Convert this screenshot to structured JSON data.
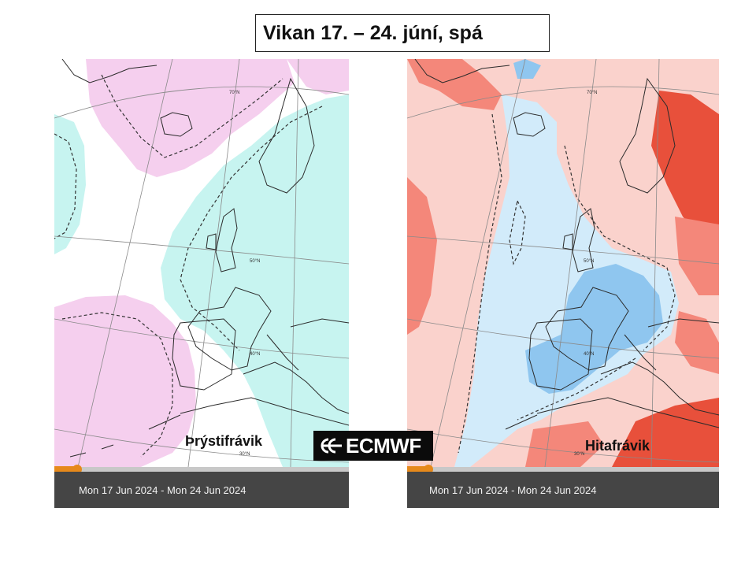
{
  "title": "Vikan 17. – 24. júní, spá",
  "logo": {
    "text": "ECMWF",
    "icon": "ecmwf-logo-icon"
  },
  "panels": [
    {
      "id": "pressure",
      "label": "Þrýstifrávik",
      "date_range": "Mon 17 Jun 2024 - Mon 24 Jun 2024",
      "colors": {
        "positive": "#f5cfee",
        "negative": "#c7f4f0",
        "neutral": "#ffffff"
      }
    },
    {
      "id": "temperature",
      "label": "Hitafrávik",
      "date_range": "Mon 17 Jun 2024 - Mon 24 Jun 2024",
      "colors": {
        "warm_light": "#fad2cc",
        "warm": "#f4877a",
        "warm_strong": "#e8503b",
        "cold_light": "#d2ebfa",
        "cold": "#8fc6ef",
        "neutral": "#ffffff"
      }
    }
  ],
  "graticule_labels": [
    "70°N",
    "50°N",
    "40°N",
    "30°N"
  ],
  "timeline": {
    "accent": "#e6891b"
  }
}
